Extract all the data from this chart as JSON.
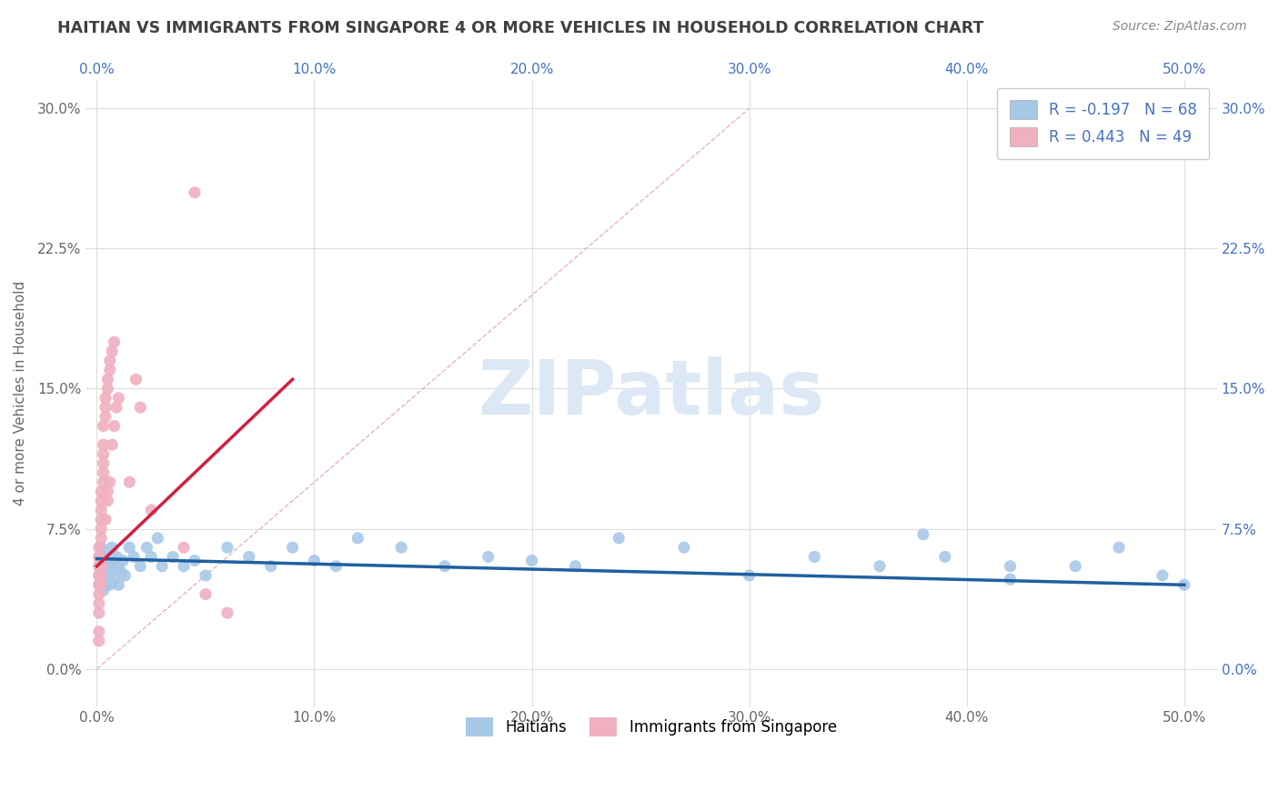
{
  "title": "HAITIAN VS IMMIGRANTS FROM SINGAPORE 4 OR MORE VEHICLES IN HOUSEHOLD CORRELATION CHART",
  "source": "Source: ZipAtlas.com",
  "xlabel_ticks": [
    "0.0%",
    "10.0%",
    "20.0%",
    "30.0%",
    "40.0%",
    "50.0%"
  ],
  "xlabel_tick_vals": [
    0.0,
    0.1,
    0.2,
    0.3,
    0.4,
    0.5
  ],
  "ylabel": "4 or more Vehicles in Household",
  "ylabel_ticks": [
    "0.0%",
    "7.5%",
    "15.0%",
    "22.5%",
    "30.0%"
  ],
  "ylabel_tick_vals": [
    0.0,
    0.075,
    0.15,
    0.225,
    0.3
  ],
  "xlim": [
    -0.005,
    0.515
  ],
  "ylim": [
    -0.02,
    0.315
  ],
  "legend_labels": [
    "Haitians",
    "Immigrants from Singapore"
  ],
  "legend_r_n": [
    {
      "R": -0.197,
      "N": 68
    },
    {
      "R": 0.443,
      "N": 49
    }
  ],
  "blue_color": "#a8c8e8",
  "pink_color": "#f0b0c0",
  "blue_line_color": "#2060a0",
  "pink_line_color": "#d02040",
  "diag_line_color": "#e0a0b0",
  "title_color": "#404040",
  "watermark_text": "ZIPatlas",
  "watermark_color": "#dce8f5",
  "background_color": "#ffffff",
  "grid_color": "#dddddd",
  "blue_scatter_x": [
    0.001,
    0.001,
    0.001,
    0.001,
    0.002,
    0.002,
    0.002,
    0.002,
    0.002,
    0.003,
    0.003,
    0.003,
    0.003,
    0.003,
    0.004,
    0.004,
    0.004,
    0.005,
    0.005,
    0.005,
    0.006,
    0.006,
    0.007,
    0.007,
    0.008,
    0.008,
    0.009,
    0.01,
    0.01,
    0.011,
    0.012,
    0.013,
    0.015,
    0.017,
    0.02,
    0.023,
    0.025,
    0.028,
    0.03,
    0.035,
    0.04,
    0.045,
    0.05,
    0.06,
    0.07,
    0.08,
    0.09,
    0.1,
    0.11,
    0.12,
    0.14,
    0.16,
    0.18,
    0.2,
    0.22,
    0.24,
    0.27,
    0.3,
    0.33,
    0.36,
    0.39,
    0.42,
    0.45,
    0.47,
    0.49,
    0.5,
    0.42,
    0.38
  ],
  "blue_scatter_y": [
    0.055,
    0.05,
    0.045,
    0.06,
    0.065,
    0.055,
    0.048,
    0.058,
    0.052,
    0.06,
    0.05,
    0.045,
    0.055,
    0.042,
    0.058,
    0.05,
    0.045,
    0.06,
    0.055,
    0.048,
    0.052,
    0.045,
    0.065,
    0.055,
    0.058,
    0.048,
    0.06,
    0.055,
    0.045,
    0.052,
    0.058,
    0.05,
    0.065,
    0.06,
    0.055,
    0.065,
    0.06,
    0.07,
    0.055,
    0.06,
    0.055,
    0.058,
    0.05,
    0.065,
    0.06,
    0.055,
    0.065,
    0.058,
    0.055,
    0.07,
    0.065,
    0.055,
    0.06,
    0.058,
    0.055,
    0.07,
    0.065,
    0.05,
    0.06,
    0.055,
    0.06,
    0.048,
    0.055,
    0.065,
    0.05,
    0.045,
    0.055,
    0.072
  ],
  "pink_scatter_x": [
    0.001,
    0.001,
    0.001,
    0.001,
    0.001,
    0.001,
    0.001,
    0.001,
    0.001,
    0.001,
    0.002,
    0.002,
    0.002,
    0.002,
    0.002,
    0.002,
    0.002,
    0.002,
    0.002,
    0.003,
    0.003,
    0.003,
    0.003,
    0.003,
    0.003,
    0.004,
    0.004,
    0.004,
    0.004,
    0.005,
    0.005,
    0.005,
    0.005,
    0.006,
    0.006,
    0.006,
    0.007,
    0.007,
    0.008,
    0.008,
    0.009,
    0.01,
    0.015,
    0.018,
    0.02,
    0.025,
    0.04,
    0.05,
    0.06
  ],
  "pink_scatter_y": [
    0.03,
    0.035,
    0.04,
    0.045,
    0.05,
    0.055,
    0.06,
    0.065,
    0.02,
    0.015,
    0.07,
    0.075,
    0.08,
    0.085,
    0.09,
    0.095,
    0.05,
    0.055,
    0.045,
    0.1,
    0.105,
    0.11,
    0.115,
    0.12,
    0.13,
    0.135,
    0.14,
    0.145,
    0.08,
    0.15,
    0.155,
    0.09,
    0.095,
    0.16,
    0.165,
    0.1,
    0.17,
    0.12,
    0.175,
    0.13,
    0.14,
    0.145,
    0.1,
    0.155,
    0.14,
    0.085,
    0.065,
    0.04,
    0.03
  ],
  "pink_outlier_x": [
    0.045
  ],
  "pink_outlier_y": [
    0.255
  ]
}
